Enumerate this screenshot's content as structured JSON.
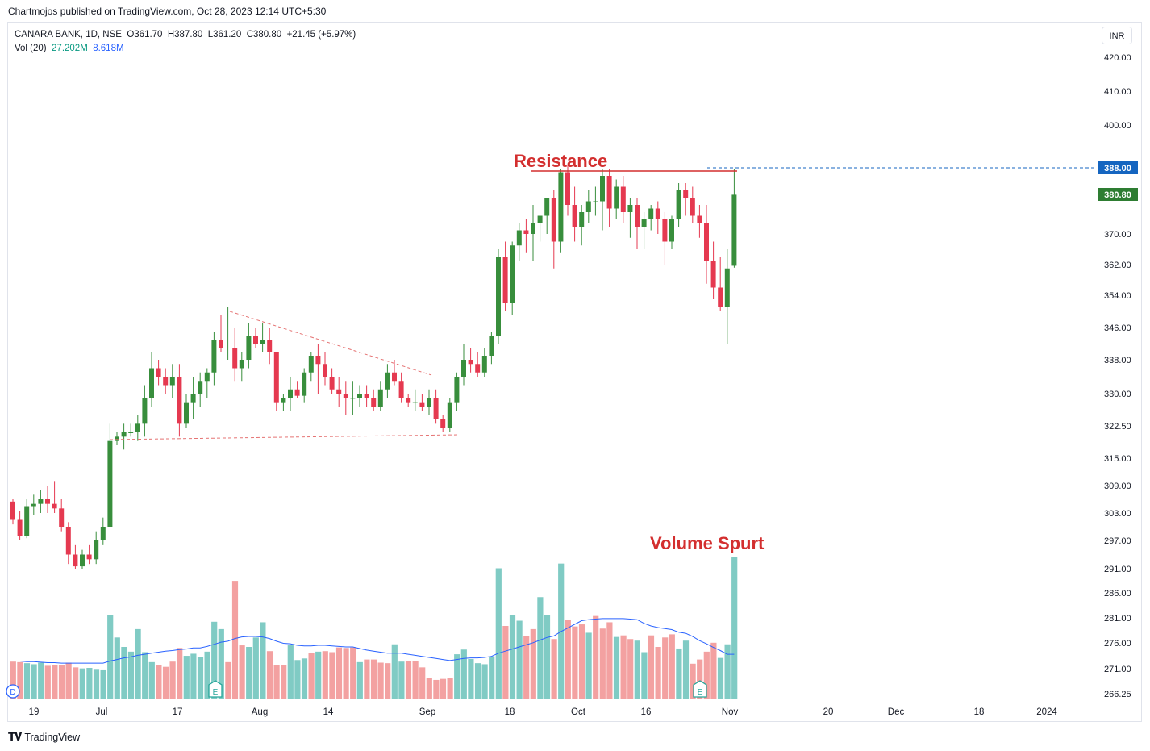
{
  "header": {
    "published": "Chartmojos published on TradingView.com, Oct 28, 2023 12:14 UTC+5:30"
  },
  "legend": {
    "symbol": "CANARA BANK, 1D, NSE",
    "open": "O361.70",
    "high": "H387.80",
    "low": "L361.20",
    "close": "C380.80",
    "change": "+21.45 (+5.97%)",
    "vol_label": "Vol (20)",
    "vol_value": "27.202M",
    "vol_ma": "8.618M"
  },
  "currency": "INR",
  "footer": {
    "brand": "TradingView"
  },
  "colors": {
    "up": "#388e3c",
    "down": "#e53950",
    "vol_up": "#80cbc4",
    "vol_down": "#f3a1a1",
    "ma": "#2962ff",
    "resistance": "#d32f2f",
    "price_tag": "#2e7d32",
    "dashed_tag": "#1565c0"
  },
  "chart_data": {
    "type": "candlestick",
    "y_ticks": [
      "420.00",
      "410.00",
      "400.00",
      "370.00",
      "362.00",
      "354.00",
      "346.00",
      "338.00",
      "330.00",
      "322.50",
      "315.00",
      "309.00",
      "303.00",
      "297.00",
      "291.00",
      "286.00",
      "281.00",
      "276.00",
      "271.00",
      "266.25"
    ],
    "x_ticks": [
      "19",
      "Jul",
      "17",
      "Aug",
      "14",
      "Sep",
      "18",
      "Oct",
      "16",
      "Nov",
      "20",
      "Dec",
      "18",
      "2024"
    ],
    "price_labels": {
      "resistance_tag": "388.00",
      "last_price": "380.80"
    },
    "annotations": {
      "resistance": "Resistance",
      "volume": "Volume Spurt"
    },
    "event_markers": [
      "D",
      "E",
      "E"
    ],
    "candles": [
      [
        305.5,
        306,
        300.5,
        301.5
      ],
      [
        301.5,
        303.5,
        297,
        298
      ],
      [
        298,
        306,
        297.5,
        304.5
      ],
      [
        304.5,
        307,
        302.5,
        305
      ],
      [
        305,
        308,
        303,
        306
      ],
      [
        306,
        309,
        303,
        305
      ],
      [
        305,
        310,
        303,
        304
      ],
      [
        304,
        306,
        299,
        300
      ],
      [
        300,
        301,
        292,
        294
      ],
      [
        294,
        296,
        291,
        291.5
      ],
      [
        291.5,
        295,
        291,
        294
      ],
      [
        294,
        296,
        292,
        293
      ],
      [
        293,
        299,
        292,
        297
      ],
      [
        297,
        302,
        296,
        300
      ],
      [
        300,
        323,
        300,
        319
      ],
      [
        319,
        321,
        318,
        320
      ],
      [
        320,
        323,
        317,
        321
      ],
      [
        321,
        323,
        320,
        321
      ],
      [
        321,
        325,
        319,
        323
      ],
      [
        323,
        332,
        320,
        329
      ],
      [
        329,
        340,
        327,
        336
      ],
      [
        336,
        338,
        332,
        334
      ],
      [
        334,
        336,
        330,
        332
      ],
      [
        332,
        337,
        329,
        334
      ],
      [
        334,
        337,
        320,
        323
      ],
      [
        323,
        330,
        322,
        328
      ],
      [
        328,
        334,
        324,
        330
      ],
      [
        330,
        335,
        327,
        333
      ],
      [
        333,
        336,
        329,
        335
      ],
      [
        335,
        345,
        332,
        343
      ],
      [
        343,
        349,
        340,
        341
      ],
      [
        341,
        351,
        338,
        341
      ],
      [
        341,
        346,
        333,
        336
      ],
      [
        336,
        340,
        333,
        338
      ],
      [
        338,
        347,
        336,
        344
      ],
      [
        344,
        346,
        341,
        342
      ],
      [
        342,
        347,
        340,
        343
      ],
      [
        343,
        346,
        337,
        340
      ],
      [
        340,
        340,
        326,
        328
      ],
      [
        328,
        330,
        326,
        329
      ],
      [
        329,
        334,
        326,
        331
      ],
      [
        331,
        333,
        329,
        329.5
      ],
      [
        329.5,
        336,
        328,
        335
      ],
      [
        335,
        340,
        333,
        339
      ],
      [
        339,
        342,
        330,
        337
      ],
      [
        337,
        340,
        332,
        334
      ],
      [
        334,
        336,
        330,
        331
      ],
      [
        331,
        334,
        327,
        330
      ],
      [
        330,
        333,
        325,
        329
      ],
      [
        329,
        333,
        325,
        329
      ],
      [
        329,
        332,
        327,
        330
      ],
      [
        330,
        332,
        327,
        329
      ],
      [
        329,
        331,
        326,
        327
      ],
      [
        327,
        333,
        326,
        331
      ],
      [
        331,
        337,
        329,
        335
      ],
      [
        335,
        338,
        332,
        333
      ],
      [
        333,
        335,
        328,
        329
      ],
      [
        329,
        330,
        327,
        328
      ],
      [
        328,
        331,
        326,
        328
      ],
      [
        328,
        330,
        326,
        327
      ],
      [
        327,
        331,
        325,
        329
      ],
      [
        329,
        331,
        323,
        324
      ],
      [
        324,
        325,
        321,
        322
      ],
      [
        322,
        329,
        321,
        328
      ],
      [
        328,
        335,
        326,
        334
      ],
      [
        334,
        342,
        332,
        338
      ],
      [
        338,
        341,
        335,
        337
      ],
      [
        337,
        340,
        334,
        335
      ],
      [
        335,
        341,
        334,
        339
      ],
      [
        339,
        345,
        337,
        344
      ],
      [
        344,
        366,
        342,
        364
      ],
      [
        364,
        368,
        350,
        352
      ],
      [
        352,
        368,
        349,
        367
      ],
      [
        367,
        373,
        363,
        371
      ],
      [
        371,
        374,
        365,
        370
      ],
      [
        370,
        378,
        363,
        373
      ],
      [
        373,
        375,
        368,
        375
      ],
      [
        375,
        380,
        370,
        380
      ],
      [
        380,
        382,
        361,
        368
      ],
      [
        368,
        388,
        365,
        387
      ],
      [
        387,
        389,
        375,
        378
      ],
      [
        378,
        383,
        368,
        372
      ],
      [
        372,
        378,
        367,
        376
      ],
      [
        376,
        382,
        373,
        379
      ],
      [
        379,
        383,
        375,
        379
      ],
      [
        379,
        388,
        371,
        386
      ],
      [
        386,
        388,
        372,
        377
      ],
      [
        377,
        385,
        374,
        383
      ],
      [
        383,
        386,
        373,
        376
      ],
      [
        376,
        380,
        369,
        378
      ],
      [
        378,
        380,
        366,
        372
      ],
      [
        372,
        376,
        366,
        374
      ],
      [
        374,
        378,
        371,
        377
      ],
      [
        377,
        379,
        370,
        374
      ],
      [
        374,
        376,
        362,
        368
      ],
      [
        368,
        375,
        366,
        374
      ],
      [
        374,
        384,
        372,
        382
      ],
      [
        382,
        384,
        375,
        380
      ],
      [
        380,
        383,
        373,
        375
      ],
      [
        375,
        378,
        369,
        373
      ],
      [
        373,
        378,
        357,
        363
      ],
      [
        363,
        368,
        353,
        356
      ],
      [
        356,
        364,
        350,
        351
      ],
      [
        351,
        366,
        342,
        361
      ],
      [
        361.7,
        387.8,
        361.2,
        380.8
      ]
    ],
    "volumes": [
      [
        7.2,
        0
      ],
      [
        7.1,
        0
      ],
      [
        6.9,
        1
      ],
      [
        6.7,
        1
      ],
      [
        7.0,
        1
      ],
      [
        6.4,
        0
      ],
      [
        6.5,
        0
      ],
      [
        6.6,
        0
      ],
      [
        7.0,
        0
      ],
      [
        6.1,
        0
      ],
      [
        5.9,
        1
      ],
      [
        6.0,
        1
      ],
      [
        5.8,
        1
      ],
      [
        5.7,
        1
      ],
      [
        16.0,
        1
      ],
      [
        11.8,
        1
      ],
      [
        10.0,
        1
      ],
      [
        9.1,
        1
      ],
      [
        13.4,
        1
      ],
      [
        9.0,
        1
      ],
      [
        7.1,
        1
      ],
      [
        6.6,
        0
      ],
      [
        6.2,
        0
      ],
      [
        7.2,
        0
      ],
      [
        9.8,
        0
      ],
      [
        8.3,
        1
      ],
      [
        8.7,
        1
      ],
      [
        8.1,
        1
      ],
      [
        9.1,
        1
      ],
      [
        14.8,
        1
      ],
      [
        13.4,
        1
      ],
      [
        7.1,
        0
      ],
      [
        22.6,
        0
      ],
      [
        10.3,
        0
      ],
      [
        10.0,
        1
      ],
      [
        11.8,
        1
      ],
      [
        14.7,
        1
      ],
      [
        9.2,
        0
      ],
      [
        6.6,
        0
      ],
      [
        6.5,
        0
      ],
      [
        10.3,
        1
      ],
      [
        7.5,
        1
      ],
      [
        7.8,
        1
      ],
      [
        8.8,
        0
      ],
      [
        9.1,
        1
      ],
      [
        9.2,
        0
      ],
      [
        9.0,
        0
      ],
      [
        9.9,
        0
      ],
      [
        9.8,
        0
      ],
      [
        9.9,
        0
      ],
      [
        7.1,
        1
      ],
      [
        7.6,
        0
      ],
      [
        7.6,
        0
      ],
      [
        7.0,
        0
      ],
      [
        6.9,
        0
      ],
      [
        10.5,
        1
      ],
      [
        7.2,
        1
      ],
      [
        7.3,
        0
      ],
      [
        7.3,
        0
      ],
      [
        6.1,
        0
      ],
      [
        4.1,
        0
      ],
      [
        3.7,
        0
      ],
      [
        3.9,
        0
      ],
      [
        4.0,
        0
      ],
      [
        8.6,
        1
      ],
      [
        9.5,
        1
      ],
      [
        7.7,
        1
      ],
      [
        6.9,
        1
      ],
      [
        6.7,
        1
      ],
      [
        8.2,
        1
      ],
      [
        25.0,
        1
      ],
      [
        14.0,
        0
      ],
      [
        16.0,
        1
      ],
      [
        15.0,
        1
      ],
      [
        12.1,
        0
      ],
      [
        13.4,
        0
      ],
      [
        19.5,
        1
      ],
      [
        16.0,
        1
      ],
      [
        11.5,
        0
      ],
      [
        25.9,
        1
      ],
      [
        15.1,
        0
      ],
      [
        13.9,
        0
      ],
      [
        14.3,
        0
      ],
      [
        12.7,
        1
      ],
      [
        15.9,
        0
      ],
      [
        13.5,
        0
      ],
      [
        14.7,
        0
      ],
      [
        11.9,
        1
      ],
      [
        12.2,
        0
      ],
      [
        11.5,
        0
      ],
      [
        11.2,
        1
      ],
      [
        9.0,
        1
      ],
      [
        12.2,
        0
      ],
      [
        10.0,
        0
      ],
      [
        11.8,
        0
      ],
      [
        12.4,
        0
      ],
      [
        9.7,
        1
      ],
      [
        11.2,
        1
      ],
      [
        6.8,
        0
      ],
      [
        7.6,
        0
      ],
      [
        9.1,
        0
      ],
      [
        10.8,
        0
      ],
      [
        7.9,
        1
      ],
      [
        10.5,
        1
      ],
      [
        27.2,
        1
      ]
    ],
    "volume_ma": [
      7.3,
      7.3,
      7.2,
      7.2,
      7.1,
      7.0,
      7.0,
      6.9,
      6.9,
      6.9,
      6.9,
      6.9,
      6.9,
      6.9,
      7.3,
      7.6,
      7.9,
      8.1,
      8.4,
      8.6,
      8.8,
      9.0,
      9.2,
      9.3,
      9.5,
      9.6,
      9.8,
      9.8,
      10.1,
      10.5,
      10.9,
      11.1,
      11.6,
      11.9,
      12.0,
      12.0,
      11.9,
      11.6,
      11.1,
      10.7,
      10.6,
      10.3,
      10.2,
      10.2,
      10.3,
      10.3,
      10.2,
      10.1,
      10.0,
      10.0,
      9.7,
      9.4,
      9.2,
      9.0,
      8.8,
      8.8,
      8.8,
      8.6,
      8.4,
      8.2,
      8.0,
      7.8,
      7.6,
      7.4,
      7.6,
      7.8,
      7.9,
      7.9,
      8.0,
      8.2,
      8.8,
      9.2,
      9.6,
      10.0,
      10.4,
      10.8,
      11.3,
      11.8,
      12.1,
      12.9,
      13.6,
      14.3,
      15.0,
      15.2,
      15.3,
      15.4,
      15.4,
      15.4,
      15.4,
      15.3,
      15.2,
      14.5,
      14.0,
      13.7,
      13.5,
      13.3,
      12.8,
      12.6,
      12.0,
      11.2,
      10.6,
      9.9,
      9.3,
      8.6,
      8.6
    ]
  }
}
